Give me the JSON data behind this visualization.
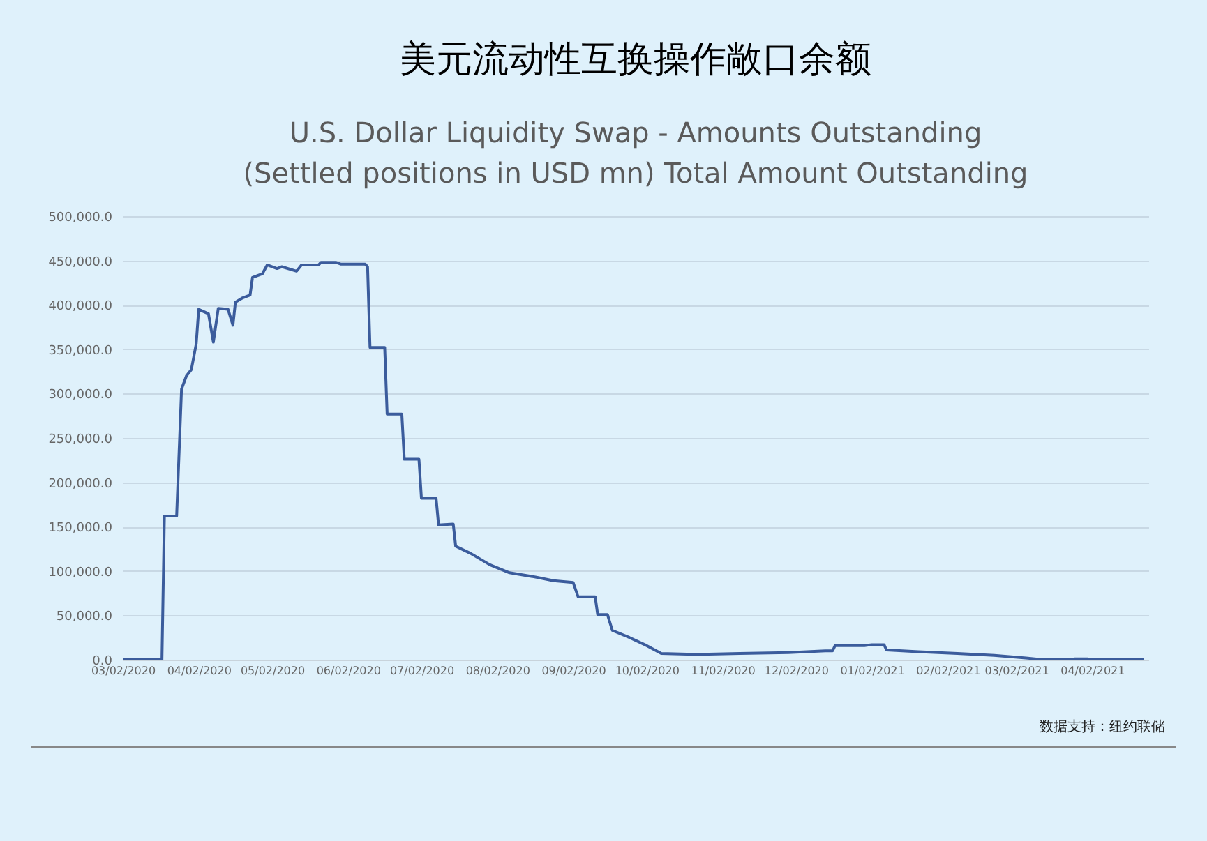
{
  "chart_data": {
    "type": "line",
    "title": "美元流动性互换操作敞口余额",
    "subtitle": "U.S. Dollar Liquidity Swap - Amounts Outstanding\n(Settled positions in USD mn) Total Amount Outstanding",
    "annotations": [
      "数据支持：纽约联储"
    ],
    "x": [
      "2020-03-02",
      "2020-03-18",
      "2020-03-19",
      "2020-03-24",
      "2020-03-26",
      "2020-03-28",
      "2020-03-30",
      "2020-04-01",
      "2020-04-02",
      "2020-04-06",
      "2020-04-08",
      "2020-04-10",
      "2020-04-14",
      "2020-04-16",
      "2020-04-17",
      "2020-04-20",
      "2020-04-23",
      "2020-04-24",
      "2020-04-28",
      "2020-04-30",
      "2020-05-04",
      "2020-05-06",
      "2020-05-12",
      "2020-05-14",
      "2020-05-21",
      "2020-05-22",
      "2020-05-28",
      "2020-05-30",
      "2020-06-09",
      "2020-06-10",
      "2020-06-11",
      "2020-06-17",
      "2020-06-18",
      "2020-06-24",
      "2020-06-25",
      "2020-07-01",
      "2020-07-02",
      "2020-07-08",
      "2020-07-09",
      "2020-07-15",
      "2020-07-16",
      "2020-07-22",
      "2020-07-30",
      "2020-08-07",
      "2020-08-18",
      "2020-08-25",
      "2020-09-02",
      "2020-09-04",
      "2020-09-11",
      "2020-09-12",
      "2020-09-16",
      "2020-09-18",
      "2020-09-25",
      "2020-10-02",
      "2020-10-08",
      "2020-10-21",
      "2020-11-09",
      "2020-11-29",
      "2020-12-14",
      "2020-12-17",
      "2020-12-18",
      "2020-12-30",
      "2021-01-02",
      "2021-01-07",
      "2021-01-08",
      "2021-01-21",
      "2021-02-06",
      "2021-02-21",
      "2021-03-06",
      "2021-03-13",
      "2021-03-24",
      "2021-03-26",
      "2021-03-31",
      "2021-04-02",
      "2021-04-23"
    ],
    "series": [
      {
        "color": "#3b5c9c",
        "values": [
          0,
          0,
          162000,
          162000,
          305000,
          320000,
          327000,
          356000,
          395000,
          390000,
          358000,
          396000,
          395000,
          377000,
          403000,
          408000,
          411000,
          431000,
          435000,
          445000,
          441000,
          443000,
          438000,
          445000,
          445000,
          448000,
          448000,
          446000,
          446000,
          443000,
          352000,
          352000,
          277000,
          277000,
          226000,
          226000,
          182000,
          182000,
          152000,
          153000,
          128000,
          120000,
          107000,
          98000,
          93000,
          89000,
          87000,
          71000,
          71000,
          51000,
          51000,
          33000,
          25000,
          16000,
          7000,
          6000,
          7000,
          8000,
          10000,
          10000,
          16000,
          16000,
          17000,
          17000,
          11000,
          9000,
          7000,
          5000,
          2000,
          0,
          0,
          1000,
          1000,
          0,
          0
        ]
      }
    ],
    "xlim": [
      "2020-03-02",
      "2021-04-25"
    ],
    "xticks": [
      {
        "value": "2020-03-02",
        "label": "03/02/2020"
      },
      {
        "value": "2020-04-02",
        "label": "04/02/2020"
      },
      {
        "value": "2020-05-02",
        "label": "05/02/2020"
      },
      {
        "value": "2020-06-02",
        "label": "06/02/2020"
      },
      {
        "value": "2020-07-02",
        "label": "07/02/2020"
      },
      {
        "value": "2020-08-02",
        "label": "08/02/2020"
      },
      {
        "value": "2020-09-02",
        "label": "09/02/2020"
      },
      {
        "value": "2020-10-02",
        "label": "10/02/2020"
      },
      {
        "value": "2020-11-02",
        "label": "11/02/2020"
      },
      {
        "value": "2020-12-02",
        "label": "12/02/2020"
      },
      {
        "value": "2021-01-02",
        "label": "01/02/2021"
      },
      {
        "value": "2021-02-02",
        "label": "02/02/2021"
      },
      {
        "value": "2021-03-02",
        "label": "03/02/2021"
      },
      {
        "value": "2021-04-02",
        "label": "04/02/2021"
      }
    ],
    "ylim": [
      0,
      500000
    ],
    "yticks": [
      {
        "value": 0,
        "label": "0.0"
      },
      {
        "value": 50000,
        "label": "50,000.0"
      },
      {
        "value": 100000,
        "label": "100,000.0"
      },
      {
        "value": 150000,
        "label": "150,000.0"
      },
      {
        "value": 200000,
        "label": "200,000.0"
      },
      {
        "value": 250000,
        "label": "250,000.0"
      },
      {
        "value": 300000,
        "label": "300,000.0"
      },
      {
        "value": 350000,
        "label": "350,000.0"
      },
      {
        "value": 400000,
        "label": "400,000.0"
      },
      {
        "value": 450000,
        "label": "450,000.0"
      },
      {
        "value": 500000,
        "label": "500,000.0"
      }
    ],
    "grid": "y",
    "marker": "none",
    "line_style": "solid"
  }
}
